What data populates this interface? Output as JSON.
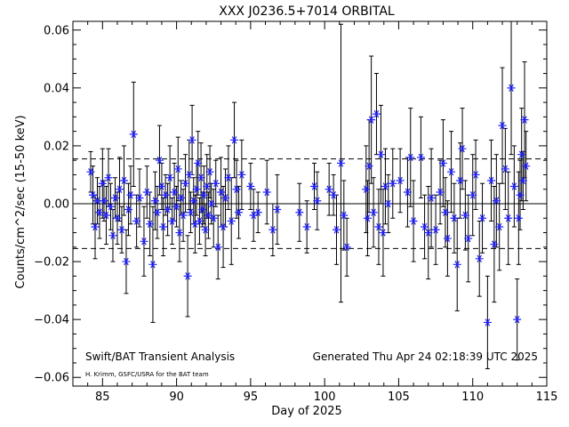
{
  "chart_data": {
    "type": "scatter",
    "title": "XXX J0236.5+7014 ORBITAL",
    "xlabel": "Day of 2025",
    "ylabel": "Counts/cm^2/sec (15-50 keV)",
    "xlim": [
      83,
      115
    ],
    "ylim": [
      -0.063,
      0.063
    ],
    "xticks": [
      85,
      90,
      95,
      100,
      105,
      110,
      115
    ],
    "xtick_labels": [
      "85",
      "90",
      "95",
      "100",
      "105",
      "110",
      "115"
    ],
    "yticks": [
      -0.06,
      -0.04,
      -0.02,
      0.0,
      0.02,
      0.04,
      0.06
    ],
    "ytick_labels": [
      "−0.06",
      "−0.04",
      "−0.02",
      "0.00",
      "0.02",
      "0.04",
      "0.06"
    ],
    "zero_line": 0.0,
    "sigma_lines": [
      0.0155,
      -0.0155
    ],
    "grid": false,
    "marker": "asterisk",
    "marker_color": "#1f1fff",
    "errorbar_color": "#000000",
    "series": [
      {
        "points": [
          [
            84.2,
            0.011,
            0.007
          ],
          [
            84.35,
            0.003,
            0.01
          ],
          [
            84.5,
            -0.008,
            0.011
          ],
          [
            84.65,
            0.001,
            0.008
          ],
          [
            84.8,
            -0.003,
            0.009
          ],
          [
            85.0,
            0.007,
            0.012
          ],
          [
            85.1,
            0.001,
            0.007
          ],
          [
            85.25,
            -0.004,
            0.01
          ],
          [
            85.4,
            0.009,
            0.01
          ],
          [
            85.55,
            -0.001,
            0.008
          ],
          [
            85.7,
            -0.011,
            0.009
          ],
          [
            85.85,
            0.002,
            0.007
          ],
          [
            86.0,
            -0.005,
            0.009
          ],
          [
            86.15,
            0.005,
            0.011
          ],
          [
            86.3,
            -0.009,
            0.008
          ],
          [
            86.45,
            0.008,
            0.012
          ],
          [
            86.6,
            -0.02,
            0.011
          ],
          [
            86.75,
            -0.002,
            0.009
          ],
          [
            86.9,
            0.003,
            0.01
          ],
          [
            87.1,
            0.024,
            0.018
          ],
          [
            87.3,
            -0.006,
            0.009
          ],
          [
            87.5,
            0.002,
            0.01
          ],
          [
            87.8,
            -0.013,
            0.012
          ],
          [
            88.0,
            0.004,
            0.009
          ],
          [
            88.2,
            -0.007,
            0.011
          ],
          [
            88.4,
            -0.021,
            0.02
          ],
          [
            88.55,
            0.001,
            0.01
          ],
          [
            88.7,
            -0.003,
            0.009
          ],
          [
            88.85,
            0.015,
            0.012
          ],
          [
            89.0,
            0.006,
            0.008
          ],
          [
            89.1,
            -0.008,
            0.01
          ],
          [
            89.25,
            0.003,
            0.007
          ],
          [
            89.4,
            -0.002,
            0.009
          ],
          [
            89.55,
            0.009,
            0.011
          ],
          [
            89.7,
            -0.006,
            0.008
          ],
          [
            89.85,
            0.004,
            0.01
          ],
          [
            90.0,
            -0.001,
            0.007
          ],
          [
            90.1,
            0.012,
            0.011
          ],
          [
            90.2,
            -0.01,
            0.01
          ],
          [
            90.3,
            0.002,
            0.006
          ],
          [
            90.45,
            -0.004,
            0.009
          ],
          [
            90.6,
            0.007,
            0.01
          ],
          [
            90.75,
            -0.025,
            0.014
          ],
          [
            90.85,
            0.01,
            0.012
          ],
          [
            90.95,
            -0.003,
            0.007
          ],
          [
            91.05,
            0.022,
            0.012
          ],
          [
            91.15,
            0.001,
            0.008
          ],
          [
            91.25,
            -0.007,
            0.01
          ],
          [
            91.35,
            0.005,
            0.009
          ],
          [
            91.45,
            0.014,
            0.011
          ],
          [
            91.55,
            -0.006,
            0.008
          ],
          [
            91.65,
            0.009,
            0.012
          ],
          [
            91.75,
            -0.002,
            0.006
          ],
          [
            91.85,
            0.003,
            0.01
          ],
          [
            91.95,
            -0.009,
            0.009
          ],
          [
            92.05,
            0.006,
            0.011
          ],
          [
            92.15,
            -0.004,
            0.008
          ],
          [
            92.25,
            0.011,
            0.009
          ],
          [
            92.35,
            0.0,
            0.007
          ],
          [
            92.5,
            -0.005,
            0.01
          ],
          [
            92.65,
            0.007,
            0.008
          ],
          [
            92.8,
            -0.015,
            0.011
          ],
          [
            93.0,
            0.004,
            0.012
          ],
          [
            93.15,
            -0.008,
            0.014
          ],
          [
            93.3,
            0.002,
            0.01
          ],
          [
            93.5,
            0.009,
            0.011
          ],
          [
            93.7,
            -0.006,
            0.015
          ],
          [
            93.9,
            0.022,
            0.013
          ],
          [
            94.05,
            0.005,
            0.01
          ],
          [
            94.2,
            -0.003,
            0.009
          ],
          [
            94.4,
            0.01,
            0.012
          ],
          [
            95.0,
            0.006,
            0.008
          ],
          [
            95.2,
            -0.004,
            0.009
          ],
          [
            95.5,
            -0.003,
            0.007
          ],
          [
            96.1,
            0.004,
            0.011
          ],
          [
            96.5,
            -0.009,
            0.009
          ],
          [
            96.8,
            -0.002,
            0.012
          ],
          [
            98.3,
            -0.003,
            0.01
          ],
          [
            98.8,
            -0.008,
            0.009
          ],
          [
            99.3,
            0.006,
            0.008
          ],
          [
            99.5,
            0.001,
            0.01
          ],
          [
            100.3,
            0.005,
            0.009
          ],
          [
            100.6,
            0.003,
            0.007
          ],
          [
            100.8,
            -0.009,
            0.012
          ],
          [
            101.1,
            0.014,
            0.048
          ],
          [
            101.3,
            -0.004,
            0.012
          ],
          [
            101.5,
            -0.015,
            0.01
          ],
          [
            102.8,
            0.005,
            0.015
          ],
          [
            102.9,
            -0.005,
            0.013
          ],
          [
            103.0,
            0.013,
            0.016
          ],
          [
            103.15,
            0.029,
            0.022
          ],
          [
            103.3,
            -0.003,
            0.012
          ],
          [
            103.5,
            0.031,
            0.014
          ],
          [
            103.65,
            -0.008,
            0.013
          ],
          [
            103.8,
            0.017,
            0.017
          ],
          [
            103.95,
            -0.01,
            0.015
          ],
          [
            104.1,
            0.006,
            0.013
          ],
          [
            104.3,
            0.0,
            0.01
          ],
          [
            104.6,
            0.007,
            0.012
          ],
          [
            105.1,
            0.008,
            0.011
          ],
          [
            105.6,
            0.004,
            0.012
          ],
          [
            105.8,
            0.016,
            0.017
          ],
          [
            106.0,
            -0.006,
            0.014
          ],
          [
            106.5,
            0.016,
            0.014
          ],
          [
            106.75,
            -0.008,
            0.011
          ],
          [
            107.0,
            -0.01,
            0.016
          ],
          [
            107.2,
            0.002,
            0.017
          ],
          [
            107.5,
            -0.009,
            0.012
          ],
          [
            107.8,
            0.004,
            0.011
          ],
          [
            108.0,
            0.014,
            0.015
          ],
          [
            108.15,
            -0.003,
            0.012
          ],
          [
            108.3,
            -0.012,
            0.013
          ],
          [
            108.55,
            0.011,
            0.014
          ],
          [
            108.75,
            -0.005,
            0.012
          ],
          [
            108.95,
            -0.021,
            0.016
          ],
          [
            109.15,
            0.008,
            0.013
          ],
          [
            109.3,
            0.019,
            0.014
          ],
          [
            109.5,
            -0.004,
            0.012
          ],
          [
            109.7,
            -0.012,
            0.015
          ],
          [
            110.0,
            0.003,
            0.014
          ],
          [
            110.2,
            0.01,
            0.012
          ],
          [
            110.45,
            -0.019,
            0.013
          ],
          [
            110.65,
            -0.005,
            0.012
          ],
          [
            111.0,
            -0.041,
            0.016
          ],
          [
            111.25,
            0.008,
            0.014
          ],
          [
            111.45,
            -0.014,
            0.02
          ],
          [
            111.6,
            0.001,
            0.016
          ],
          [
            111.8,
            -0.008,
            0.015
          ],
          [
            112.0,
            0.027,
            0.02
          ],
          [
            112.2,
            0.012,
            0.014
          ],
          [
            112.4,
            -0.005,
            0.016
          ],
          [
            112.6,
            0.04,
            0.023
          ],
          [
            112.8,
            0.006,
            0.014
          ],
          [
            113.0,
            -0.04,
            0.014
          ],
          [
            113.1,
            -0.005,
            0.016
          ],
          [
            113.2,
            0.003,
            0.012
          ],
          [
            113.3,
            0.017,
            0.016
          ],
          [
            113.4,
            0.008,
            0.01
          ],
          [
            113.5,
            0.029,
            0.02
          ],
          [
            113.6,
            0.013,
            0.012
          ]
        ]
      }
    ],
    "annotations": [
      "Swift/BAT Transient Analysis",
      "H. Krimm, GSFC/USRA for the BAT team",
      "Generated Thu Apr 24 02:18:39 UTC 2025"
    ]
  }
}
